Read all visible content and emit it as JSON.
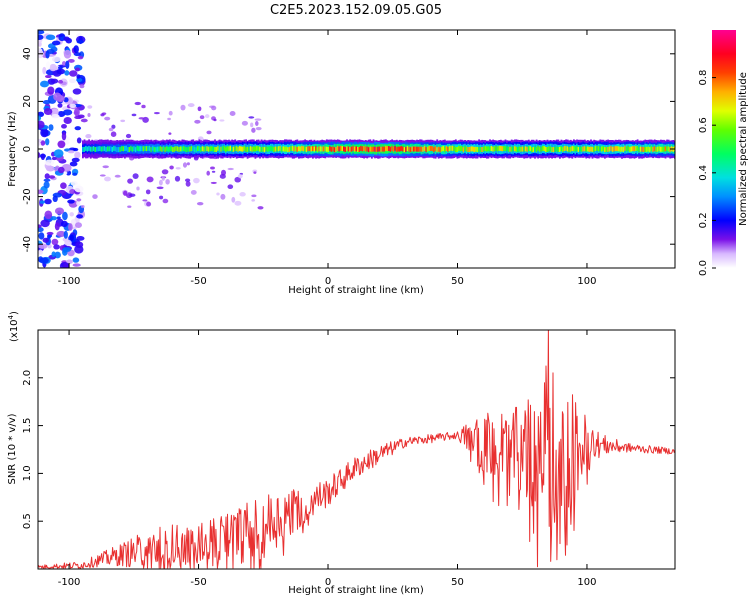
{
  "title": "C2E5.2023.152.09.05.G05",
  "chart_data": [
    {
      "type": "heatmap",
      "xlabel": "Height of straight line (km)",
      "ylabel": "Frequency (Hz)",
      "xlim": [
        -112,
        134
      ],
      "ylim": [
        -50,
        50
      ],
      "xticks": [
        -100,
        -50,
        0,
        50,
        100
      ],
      "yticks": [
        -40,
        -20,
        0,
        20,
        40
      ],
      "colorbar": {
        "label": "Normalized spectral amplitude",
        "range": [
          0.0,
          1.0
        ],
        "ticks": [
          0.0,
          0.2,
          0.4,
          0.6,
          0.8
        ],
        "colors": [
          "#ffffff",
          "#6a00e0",
          "#0000ff",
          "#00c8ff",
          "#00ff50",
          "#c8ff00",
          "#ffff00",
          "#ff8000",
          "#ff0000",
          "#ff0090"
        ]
      },
      "ridge": {
        "center_frequency_hz": 0,
        "half_width_hz": 3,
        "amplitude_profile": [
          {
            "x": -95,
            "amp": 0.35
          },
          {
            "x": -80,
            "amp": 0.45
          },
          {
            "x": -60,
            "amp": 0.5
          },
          {
            "x": -40,
            "amp": 0.55
          },
          {
            "x": -20,
            "amp": 0.6
          },
          {
            "x": 0,
            "amp": 0.75
          },
          {
            "x": 20,
            "amp": 0.85
          },
          {
            "x": 40,
            "amp": 0.7
          },
          {
            "x": 60,
            "amp": 0.6
          },
          {
            "x": 80,
            "amp": 0.6
          },
          {
            "x": 100,
            "amp": 0.6
          },
          {
            "x": 120,
            "amp": 0.65
          },
          {
            "x": 134,
            "amp": 0.7
          }
        ]
      },
      "noise_region": {
        "x_range": [
          -112,
          -95
        ],
        "freq_range": [
          -50,
          50
        ],
        "amp": 0.3
      }
    },
    {
      "type": "line",
      "xlabel": "Height of straight line (km)",
      "ylabel": "SNR (10 * v/v)",
      "scale_label": "(x10^4)",
      "xlim": [
        -112,
        134
      ],
      "ylim": [
        0,
        2.5
      ],
      "xticks": [
        -100,
        -50,
        0,
        50,
        100
      ],
      "yticks": [
        0.5,
        1.0,
        1.5,
        2.0
      ],
      "color": "#e83030",
      "envelope": [
        {
          "x": -112,
          "base": 0.02,
          "spread": 0.02
        },
        {
          "x": -95,
          "base": 0.04,
          "spread": 0.04
        },
        {
          "x": -90,
          "base": 0.08,
          "spread": 0.06
        },
        {
          "x": -80,
          "base": 0.15,
          "spread": 0.12
        },
        {
          "x": -65,
          "base": 0.22,
          "spread": 0.25
        },
        {
          "x": -50,
          "base": 0.28,
          "spread": 0.2
        },
        {
          "x": -35,
          "base": 0.35,
          "spread": 0.3
        },
        {
          "x": -25,
          "base": 0.45,
          "spread": 0.35
        },
        {
          "x": -15,
          "base": 0.6,
          "spread": 0.25
        },
        {
          "x": 0,
          "base": 0.8,
          "spread": 0.15
        },
        {
          "x": 10,
          "base": 1.05,
          "spread": 0.12
        },
        {
          "x": 20,
          "base": 1.2,
          "spread": 0.1
        },
        {
          "x": 30,
          "base": 1.33,
          "spread": 0.05
        },
        {
          "x": 50,
          "base": 1.4,
          "spread": 0.04
        },
        {
          "x": 58,
          "base": 1.35,
          "spread": 0.3
        },
        {
          "x": 75,
          "base": 1.25,
          "spread": 0.45
        },
        {
          "x": 85,
          "base": 1.3,
          "spread": 0.9
        },
        {
          "x": 95,
          "base": 1.25,
          "spread": 0.55
        },
        {
          "x": 105,
          "base": 1.3,
          "spread": 0.12
        },
        {
          "x": 115,
          "base": 1.27,
          "spread": 0.05
        },
        {
          "x": 134,
          "base": 1.23,
          "spread": 0.03
        }
      ],
      "peak": {
        "x": 85,
        "y": 2.55
      },
      "trough": {
        "x": 86,
        "y": 0.08
      }
    }
  ]
}
